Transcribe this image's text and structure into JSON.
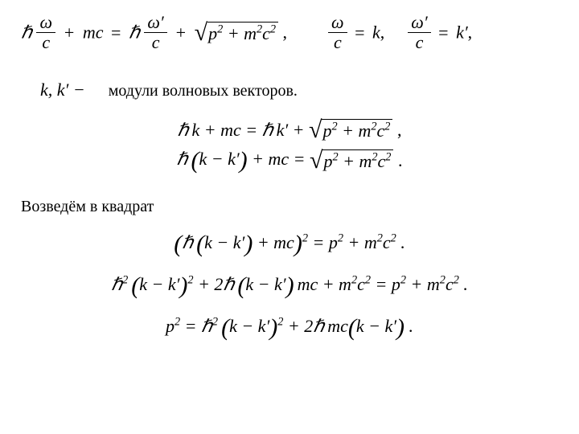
{
  "hbar": "ℏ",
  "omega": "ω",
  "omegap": "ω′",
  "c": "c",
  "m": "m",
  "k": "k",
  "kp": "k′",
  "p": "p",
  "plus": "+",
  "minus": "−",
  "eq": "=",
  "comma": ",",
  "dot": ".",
  "sqrt_body": "p<sup>2</sup> + m<sup>2</sup>c<sup>2</sup>",
  "line1_tail": " ,",
  "kk_text": "k, k′ −",
  "caption1": "модули  волновых векторов.",
  "caption2": "Возведём в квадрат",
  "eq2a": "ℏ<span class='sp'></span>k + mc = ℏ<span class='sp'></span>k′ + ",
  "eq2a_tail": " ,",
  "eq2b_left": "ℏ<span class='sp'></span><span class='bigp'>(</span>k − k′<span class='bigp'>)</span> + mc = ",
  "eq2b_tail": " .",
  "eq3": "<span class='bigp'>(</span>ℏ<span class='sp'></span><span class='bigp'>(</span>k − k′<span class='bigp'>)</span> + mc<span class='bigp'>)</span><sup>2</sup> = p<sup>2</sup> + m<sup>2</sup>c<sup>2</sup> .",
  "eq4": "ℏ<sup>2</sup><span class='sp'></span><span class='bigp'>(</span>k − k′<span class='bigp'>)</span><sup>2</sup> + 2ℏ<span class='sp'></span><span class='bigp'>(</span>k − k′<span class='bigp'>)</span><span class='sp'></span>mc + m<sup>2</sup>c<sup>2</sup> = p<sup>2</sup> + m<sup>2</sup>c<sup>2</sup> .",
  "eq5": "p<sup>2</sup> = ℏ<sup>2</sup><span class='sp'></span><span class='bigp'>(</span>k − k′<span class='bigp'>)</span><sup>2</sup> + 2ℏ<span class='sp'></span>mc<span class='bigp'>(</span>k − k′<span class='bigp'>)</span> ."
}
